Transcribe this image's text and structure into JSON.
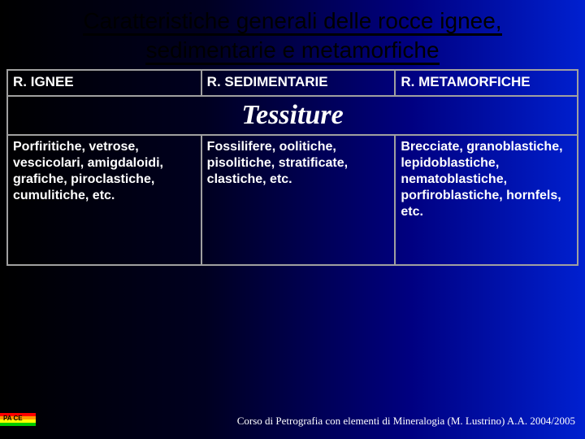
{
  "title": "Caratteristiche generali delle rocce ignee, sedimentarie e metamorfiche",
  "table": {
    "headers": [
      "R. IGNEE",
      "R. SEDIMENTARIE",
      "R. METAMORFICHE"
    ],
    "section_label": "Tessiture",
    "cells": [
      "Porfiritiche, vetrose, vescicolari, amigdaloidi, grafiche, piroclastiche, cumulitiche, etc.",
      "Fossilifere, oolitiche, pisolitiche, stratificate, clastiche, etc.",
      "Brecciate, granoblastiche, lepidoblastiche, nematoblastiche, porfiroblastiche, hornfels, etc."
    ],
    "col_widths_pct": [
      34,
      34,
      32
    ]
  },
  "pace": {
    "label": "PA CE",
    "stripe_colors": [
      "#ff0000",
      "#ff9900",
      "#ffff00",
      "#00cc00"
    ]
  },
  "footer": "Corso di Petrografia con elementi di Mineralogia (M. Lustrino) A.A. 2004/2005"
}
